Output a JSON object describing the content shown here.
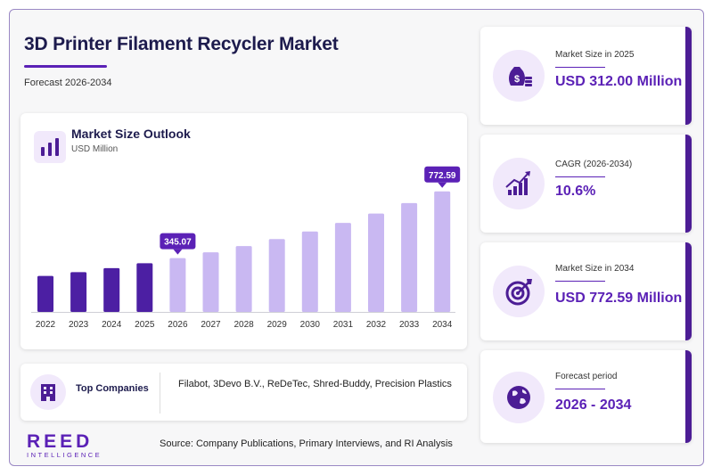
{
  "header": {
    "title": "3D Printer Filament Recycler Market",
    "subtitle": "Forecast 2026-2034"
  },
  "chart": {
    "title": "Market Size Outlook",
    "unit": "USD Million"
  },
  "chart_data": {
    "type": "bar",
    "categories": [
      "2022",
      "2023",
      "2024",
      "2025",
      "2026",
      "2027",
      "2028",
      "2029",
      "2030",
      "2031",
      "2032",
      "2033",
      "2034"
    ],
    "values": [
      231,
      255,
      281,
      312,
      345.07,
      382,
      422,
      467,
      516,
      571,
      631,
      698,
      772.59
    ],
    "data_labels": [
      {
        "category": "2026",
        "label": "345.07"
      },
      {
        "category": "2034",
        "label": "772.59"
      }
    ],
    "colors": {
      "historical": "#4c1fa3",
      "forecast": "#c9b8f2",
      "label_bg": "#5b21b6"
    },
    "ylim": [
      0,
      800
    ],
    "grid": false
  },
  "companies": {
    "label": "Top Companies",
    "list": "Filabot, 3Devo B.V., ReDeTec, Shred-Buddy, Precision Plastics"
  },
  "footer": {
    "logo_main": "REED",
    "logo_sub": "INTELLIGENCE",
    "source": "Source: Company Publications, Primary Interviews, and RI Analysis"
  },
  "stats": [
    {
      "label": "Market Size in 2025",
      "value": "USD 312.00 Million",
      "icon": "money-bag-icon"
    },
    {
      "label": "CAGR (2026-2034)",
      "value": "10.6%",
      "icon": "growth-chart-icon"
    },
    {
      "label": "Market Size in 2034",
      "value": "USD 772.59 Million",
      "icon": "target-icon"
    },
    {
      "label": "Forecast period",
      "value": "2026 - 2034",
      "icon": "globe-icon"
    }
  ]
}
